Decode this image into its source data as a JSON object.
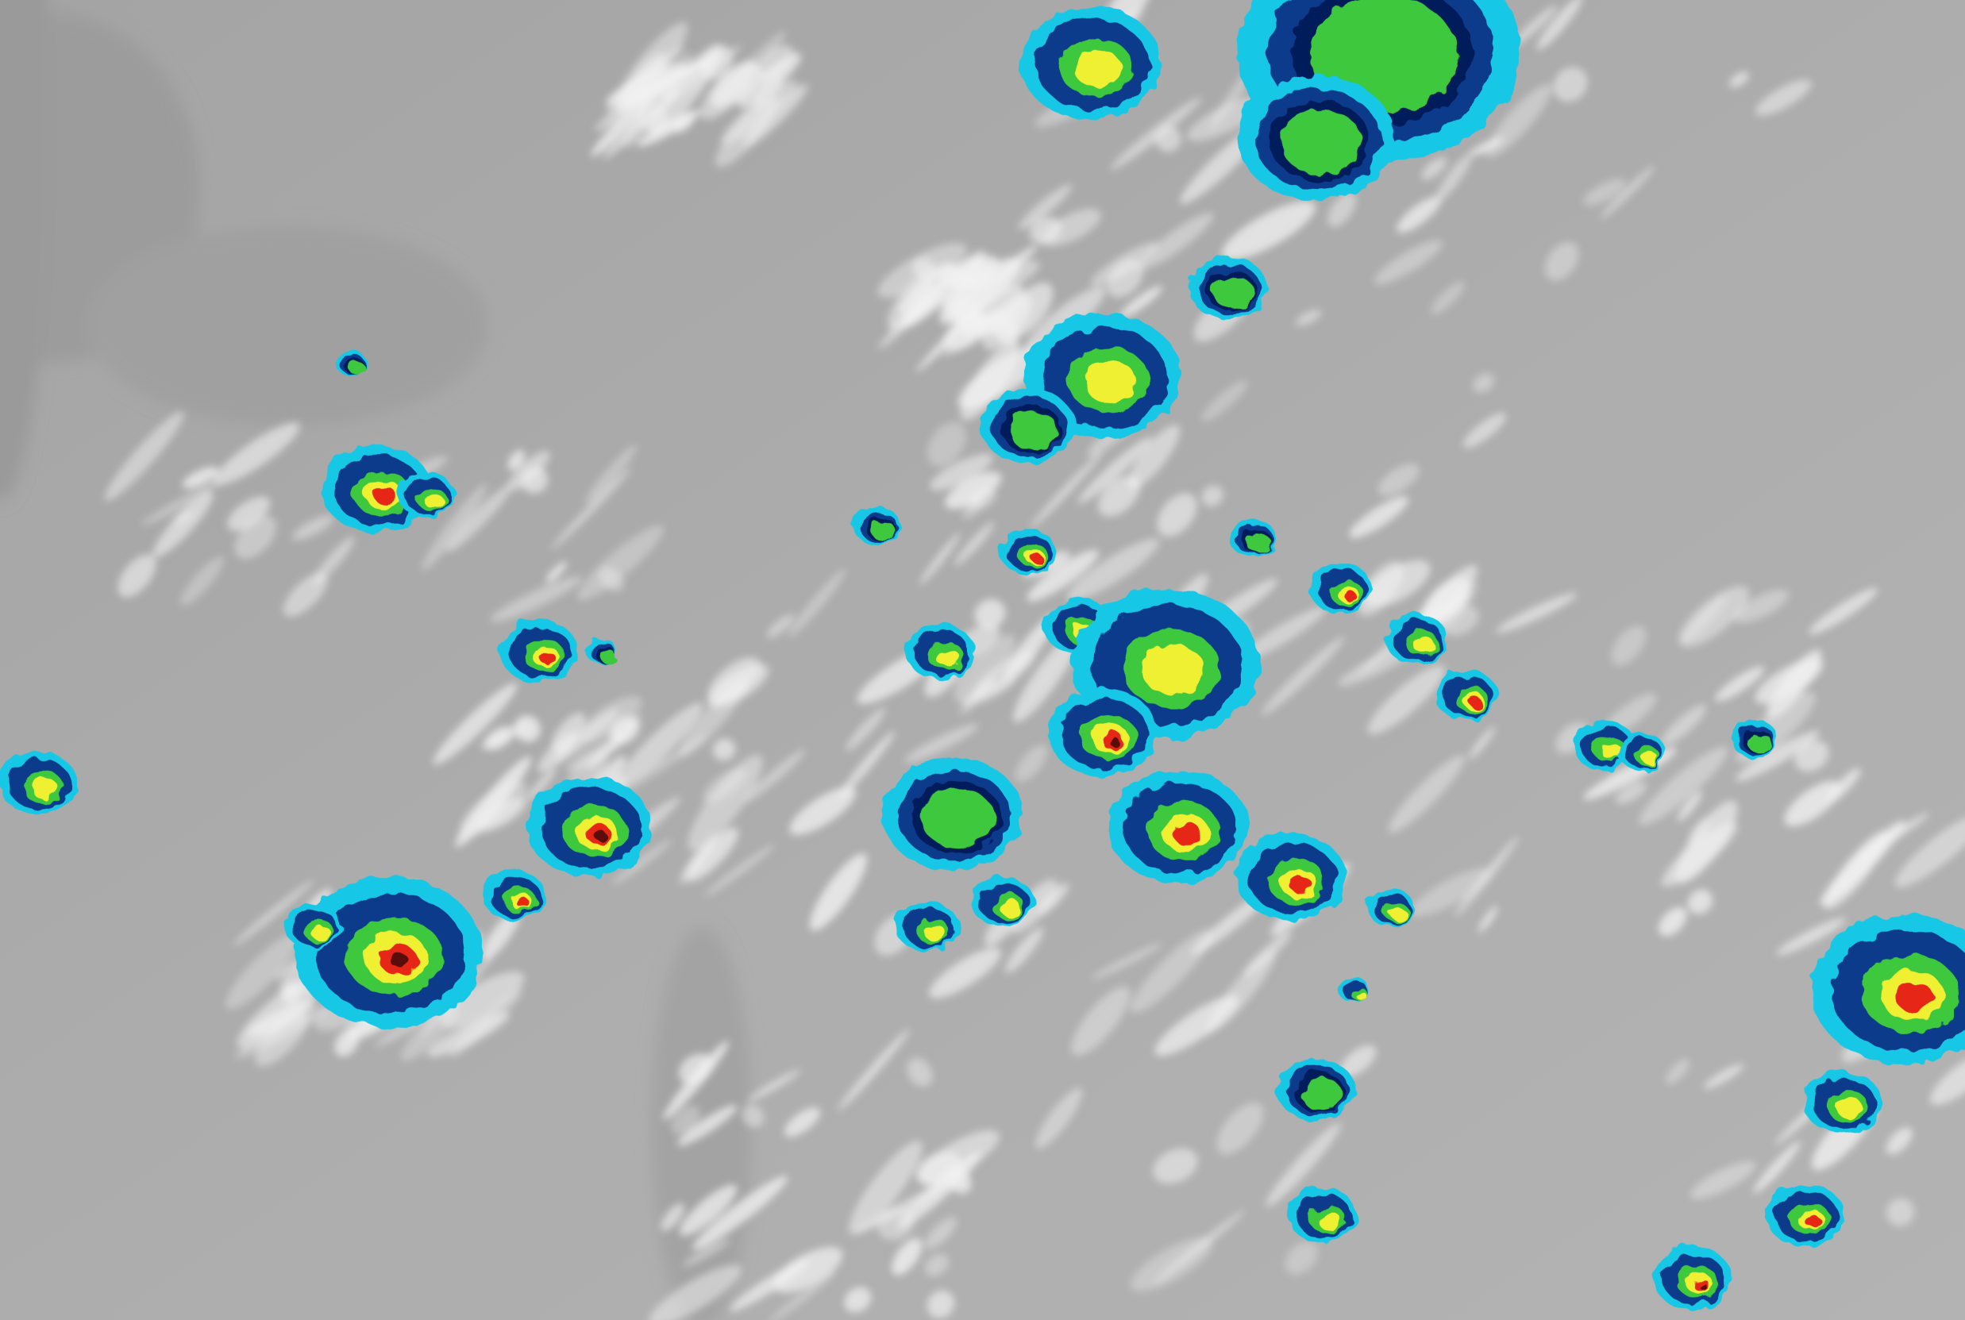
{
  "image": {
    "kind": "infrared satellite imagery, enhanced color scale",
    "palette": {
      "background_gray": "#a8a8a8",
      "cloud_white": "#f4f4f4",
      "cold_cyan": "#19c8e6",
      "deep_blue": "#0a3a8c",
      "navy": "#061a5a",
      "green": "#3cc83c",
      "yellow": "#f0f032",
      "red": "#e62814",
      "dark_red": "#5a0a0a"
    }
  }
}
